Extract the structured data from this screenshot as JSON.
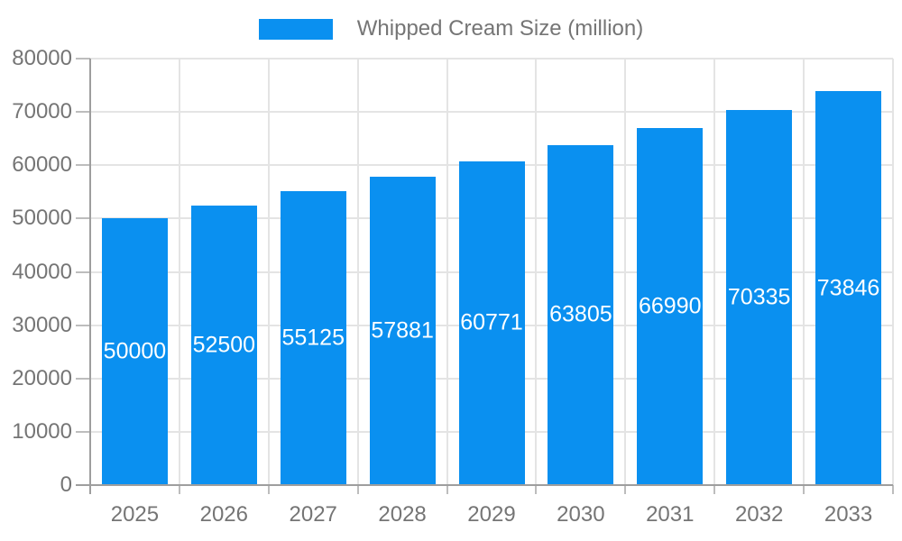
{
  "legend": {
    "label": "Whipped Cream Size (million)"
  },
  "colors": {
    "bar": "#0a90f0",
    "grid": "#e4e4e4",
    "axis_line": "#9e9e9e",
    "tick": "#bdbdbd",
    "axis_text": "#757575",
    "bar_label": "#ffffff",
    "background": "#ffffff"
  },
  "chart_data": {
    "type": "bar",
    "title": "",
    "legend_label": "Whipped Cream Size (million)",
    "legend_position": "top",
    "categories": [
      "2025",
      "2026",
      "2027",
      "2028",
      "2029",
      "2030",
      "2031",
      "2032",
      "2033"
    ],
    "values": [
      50000,
      52500,
      55125,
      57881,
      60771,
      63805,
      66990,
      70335,
      73846
    ],
    "xlabel": "",
    "ylabel": "",
    "ylim": [
      0,
      80000
    ],
    "yticks": [
      0,
      10000,
      20000,
      30000,
      40000,
      50000,
      60000,
      70000,
      80000
    ],
    "grid": true,
    "bar_labels": true
  }
}
